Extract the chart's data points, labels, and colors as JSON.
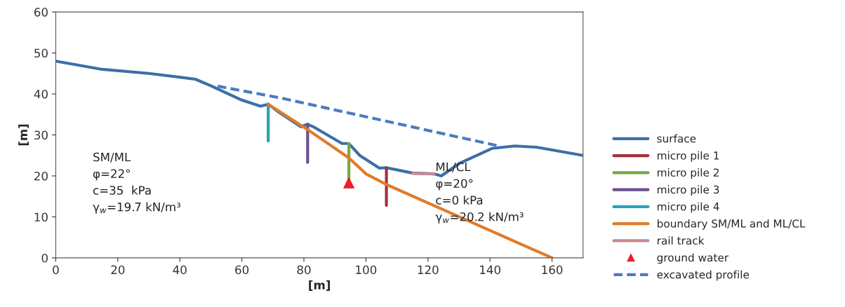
{
  "chart_data": {
    "type": "line",
    "xlabel": "[m]",
    "ylabel": "[m]",
    "xlim": [
      0,
      170
    ],
    "ylim": [
      0,
      60
    ],
    "xticks": [
      0,
      20,
      40,
      60,
      80,
      100,
      120,
      140,
      160
    ],
    "yticks": [
      0,
      10,
      20,
      30,
      40,
      50,
      60
    ],
    "grid": false,
    "legend": "right",
    "series": [
      {
        "name": "surface",
        "color": "#3d6fa8",
        "x": [
          0,
          15,
          30,
          45,
          50,
          60,
          66,
          68.5,
          72,
          79,
          81.2,
          83,
          92.3,
          94.5,
          98,
          104.3,
          106.6,
          115,
          122,
          124.3,
          130,
          140.6,
          148,
          155,
          170
        ],
        "values": [
          48,
          46,
          45,
          43.6,
          42,
          38.5,
          37,
          37.5,
          35.5,
          32,
          32.6,
          32,
          27.9,
          27.9,
          25,
          21.9,
          22,
          20.7,
          20.5,
          20,
          23,
          26.7,
          27.3,
          27,
          25
        ]
      },
      {
        "name": "micro pile 1",
        "color": "#a3313d",
        "x": [
          106.6,
          106.6
        ],
        "values": [
          22,
          12.8
        ]
      },
      {
        "name": "micro pile 2",
        "color": "#77a843",
        "x": [
          94.5,
          94.5
        ],
        "values": [
          27.9,
          19
        ]
      },
      {
        "name": "micro pile 3",
        "color": "#6a4f8f",
        "x": [
          81.2,
          81.2
        ],
        "values": [
          32.6,
          23.3
        ]
      },
      {
        "name": "micro pile 4",
        "color": "#2aa0b8",
        "x": [
          68.5,
          68.5
        ],
        "values": [
          37.5,
          28.5
        ]
      },
      {
        "name": "boundary SM/ML and ML/CL",
        "color": "#e07b2a",
        "x": [
          68.5,
          81.2,
          94.5,
          100,
          106.6,
          125.4,
          160
        ],
        "values": [
          37.5,
          31.3,
          24.4,
          20.5,
          17.9,
          11.6,
          0
        ]
      },
      {
        "name": "rail track",
        "color": "#c88a90",
        "x": [
          115,
          122
        ],
        "values": [
          20.6,
          20.5
        ]
      },
      {
        "name": "ground water",
        "type": "scatter",
        "marker": "triangle",
        "color": "#e8202a",
        "x": [
          94.5
        ],
        "values": [
          18.3
        ]
      },
      {
        "name": "excavated profile",
        "color": "#4a7cc0",
        "line_style": "dashed",
        "x": [
          52.2,
          72.6,
          142.9
        ],
        "values": [
          41.9,
          39,
          27.3
        ]
      }
    ],
    "annotations": [
      "SM/ML\nφ=22°\nc=35  kPa\nγ$_{w}$=19.7 kN/m³",
      "ML/CL\nφ=20°\nc=0 kPa\nγ$_{w}$=20.2 kN/m³"
    ]
  }
}
